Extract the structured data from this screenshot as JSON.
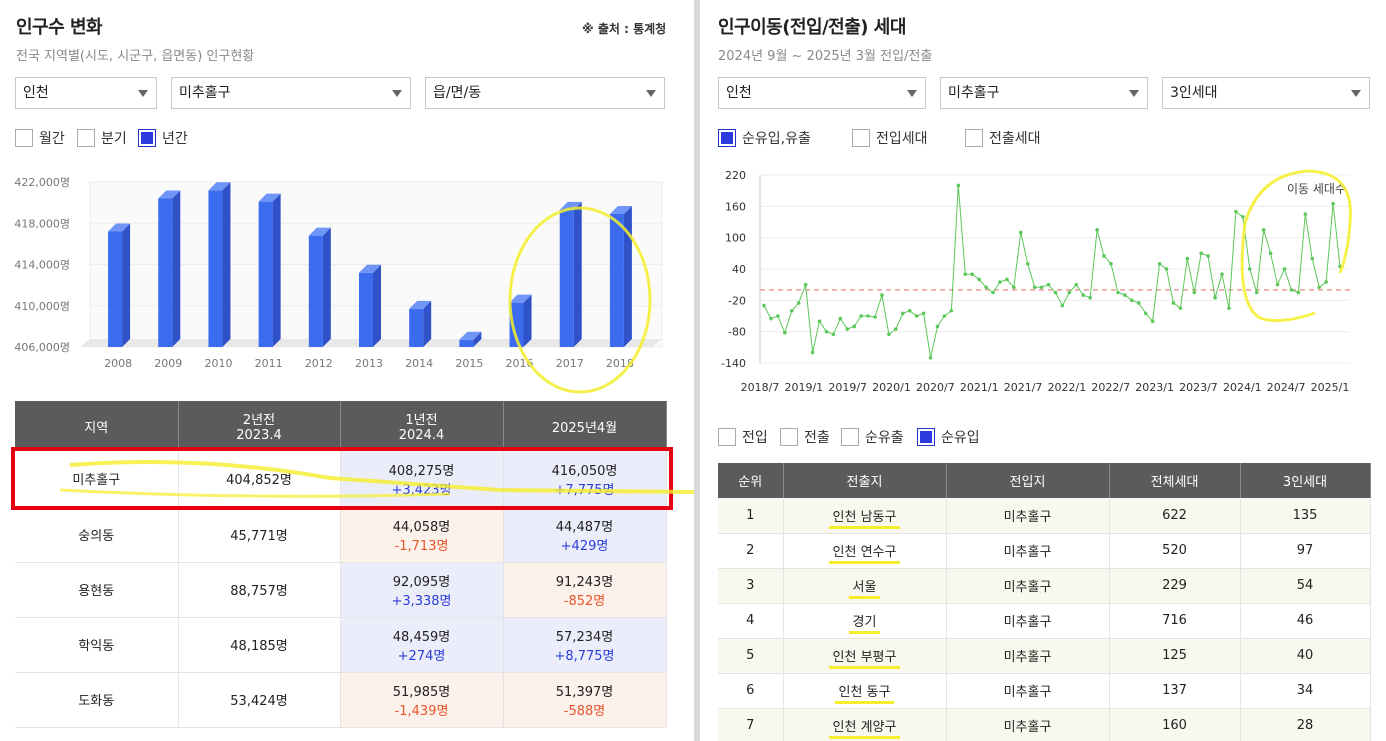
{
  "left": {
    "title": "인구수 변화",
    "source": "※ 출처 : 통계청",
    "subtitle": "전국 지역별(시도, 시군구, 읍면동) 인구현황",
    "selects": [
      "인천",
      "미추홀구",
      "읍/면/동"
    ],
    "period": [
      {
        "label": "월간",
        "checked": false
      },
      {
        "label": "분기",
        "checked": false
      },
      {
        "label": "년간",
        "checked": true
      }
    ],
    "table": {
      "headers": [
        {
          "l1": "지역",
          "l2": ""
        },
        {
          "l1": "2년전",
          "l2": "2023.4"
        },
        {
          "l1": "1년전",
          "l2": "2024.4"
        },
        {
          "l1": "2025년4월",
          "l2": ""
        }
      ],
      "rows": [
        {
          "region": "미추홀구",
          "two": "404,852명",
          "one": "408,275명",
          "one_diff": "+3,423명",
          "now": "416,050명",
          "now_diff": "+7,775명"
        },
        {
          "region": "숭의동",
          "two": "45,771명",
          "one": "44,058명",
          "one_diff": "-1,713명",
          "now": "44,487명",
          "now_diff": "+429명"
        },
        {
          "region": "용현동",
          "two": "88,757명",
          "one": "92,095명",
          "one_diff": "+3,338명",
          "now": "91,243명",
          "now_diff": "-852명"
        },
        {
          "region": "학익동",
          "two": "48,185명",
          "one": "48,459명",
          "one_diff": "+274명",
          "now": "57,234명",
          "now_diff": "+8,775명"
        },
        {
          "region": "도화동",
          "two": "53,424명",
          "one": "51,985명",
          "one_diff": "-1,439명",
          "now": "51,397명",
          "now_diff": "-588명"
        }
      ]
    }
  },
  "right": {
    "title": "인구이동(전입/전출) 세대",
    "subtitle": "2024년 9월 ~ 2025년 3월 전입/전출",
    "selects": [
      "인천",
      "미추홀구",
      "3인세대"
    ],
    "chart_toggles": [
      {
        "label": "순유입,유출",
        "checked": true
      },
      {
        "label": "전입세대",
        "checked": false
      },
      {
        "label": "전출세대",
        "checked": false
      }
    ],
    "table_toggles": [
      {
        "label": "전입",
        "checked": false
      },
      {
        "label": "전출",
        "checked": false
      },
      {
        "label": "순유출",
        "checked": false
      },
      {
        "label": "순유입",
        "checked": true
      }
    ],
    "table": {
      "headers": [
        "순위",
        "전출지",
        "전입지",
        "전체세대",
        "3인세대"
      ],
      "rows": [
        [
          "1",
          "인천 남동구",
          "미추홀구",
          "622",
          "135"
        ],
        [
          "2",
          "인천 연수구",
          "미추홀구",
          "520",
          "97"
        ],
        [
          "3",
          "서울",
          "미추홀구",
          "229",
          "54"
        ],
        [
          "4",
          "경기",
          "미추홀구",
          "716",
          "46"
        ],
        [
          "5",
          "인천 부평구",
          "미추홀구",
          "125",
          "40"
        ],
        [
          "6",
          "인천 동구",
          "미추홀구",
          "137",
          "34"
        ],
        [
          "7",
          "인천 계양구",
          "미추홀구",
          "160",
          "28"
        ]
      ]
    }
  },
  "chart_data": [
    {
      "type": "bar",
      "categories": [
        "2008",
        "2009",
        "2010",
        "2011",
        "2012",
        "2013",
        "2014",
        "2015",
        "2016",
        "2017",
        "2018"
      ],
      "values": [
        417200,
        420400,
        421200,
        420100,
        416800,
        413200,
        409700,
        406700,
        410300,
        419300,
        418900
      ],
      "ylim": [
        406000,
        422000
      ],
      "yticks": [
        "422,000명",
        "418,000명",
        "414,000명",
        "410,000명",
        "406,000명"
      ],
      "color": "#3b6cf0"
    },
    {
      "type": "line",
      "series": [
        {
          "name": "이동 세대수",
          "color": "#5cc85a"
        }
      ],
      "xticks": [
        "2018/7",
        "2019/1",
        "2019/7",
        "2020/1",
        "2020/7",
        "2021/1",
        "2021/7",
        "2022/1",
        "2022/7",
        "2023/1",
        "2023/7",
        "2024/1",
        "2024/7",
        "2025/1"
      ],
      "yticks": [
        220,
        160,
        100,
        40,
        -20,
        -80,
        -140
      ],
      "ylim": [
        -140,
        220
      ],
      "reference_line": 0,
      "values": [
        -30,
        -55,
        -50,
        -82,
        -40,
        -25,
        10,
        -120,
        -60,
        -80,
        -85,
        -55,
        -75,
        -70,
        -50,
        -50,
        -52,
        -10,
        -85,
        -75,
        -45,
        -40,
        -50,
        -45,
        -130,
        -70,
        -50,
        -40,
        200,
        30,
        30,
        20,
        5,
        -5,
        15,
        20,
        5,
        110,
        50,
        5,
        5,
        10,
        -5,
        -30,
        -5,
        10,
        -10,
        -15,
        115,
        65,
        50,
        -5,
        -10,
        -20,
        -25,
        -45,
        -60,
        50,
        40,
        -25,
        -35,
        60,
        -5,
        70,
        65,
        -15,
        30,
        -35,
        150,
        140,
        40,
        -5,
        115,
        70,
        10,
        40,
        0,
        -5,
        145,
        60,
        5,
        15,
        165,
        45
      ]
    }
  ]
}
